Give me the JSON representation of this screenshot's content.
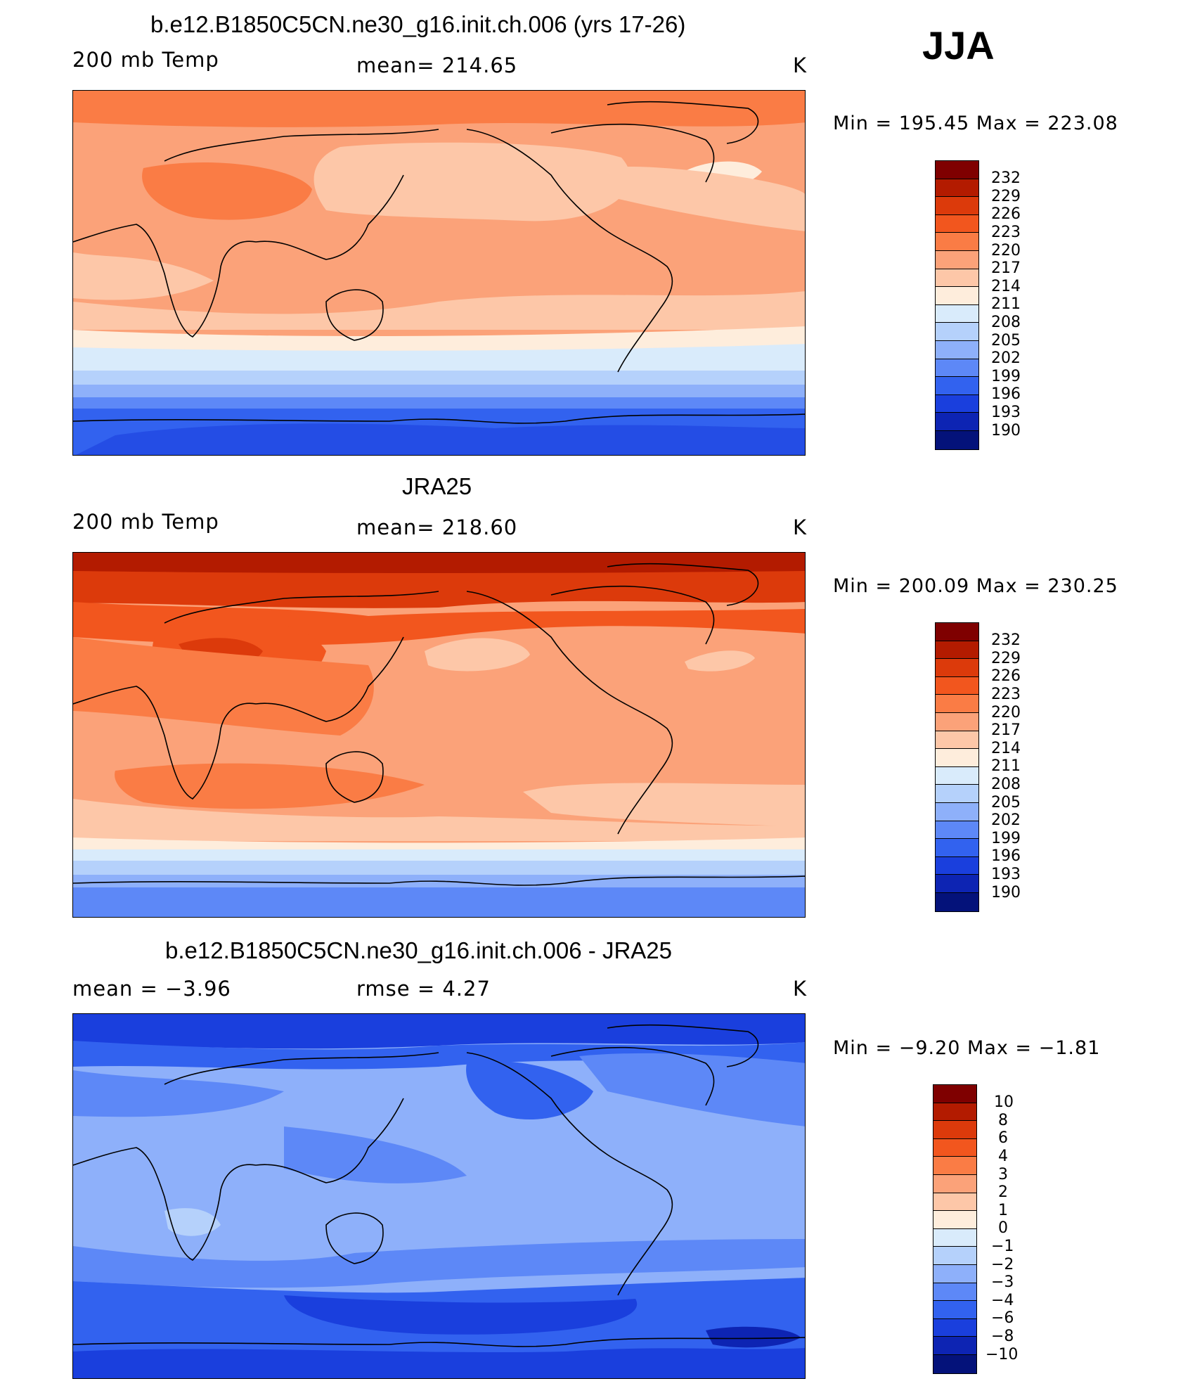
{
  "season": "JJA",
  "panels": [
    {
      "title": "b.e12.B1850C5CN.ne30_g16.init.ch.006 (yrs 17-26)",
      "left_label": "200 mb Temp",
      "center_label": "mean=  214.65",
      "units": "K",
      "minmax": "Min  =  195.45  Max  =  223.08",
      "colorbar_levels": [
        "232",
        "229",
        "226",
        "223",
        "220",
        "217",
        "214",
        "211",
        "208",
        "205",
        "202",
        "199",
        "196",
        "193",
        "190"
      ]
    },
    {
      "title": "JRA25",
      "left_label": "200 mb Temp",
      "center_label": "mean=  218.60",
      "units": "K",
      "minmax": "Min  =  200.09  Max  =  230.25",
      "colorbar_levels": [
        "232",
        "229",
        "226",
        "223",
        "220",
        "217",
        "214",
        "211",
        "208",
        "205",
        "202",
        "199",
        "196",
        "193",
        "190"
      ]
    },
    {
      "title": "b.e12.B1850C5CN.ne30_g16.init.ch.006 - JRA25",
      "left_label": "mean  =    −3.96",
      "center_label": "rmse  =     4.27",
      "units": "K",
      "minmax": "Min  =    −9.20  Max  =    −1.81",
      "colorbar_levels": [
        "10",
        "8",
        "6",
        "4",
        "3",
        "2",
        "1",
        "0",
        "−1",
        "−2",
        "−3",
        "−4",
        "−6",
        "−8",
        "−10"
      ]
    }
  ],
  "colors": {
    "scale": [
      "#7f0000",
      "#b31b00",
      "#dc3a0b",
      "#f2561e",
      "#fa7c45",
      "#fba279",
      "#fdc7a8",
      "#feeddc",
      "#d9ebfb",
      "#b5d1fb",
      "#8eb0fa",
      "#5d88f7",
      "#3262ef",
      "#1a3fdd",
      "#0d24b3",
      "#04127a"
    ]
  }
}
